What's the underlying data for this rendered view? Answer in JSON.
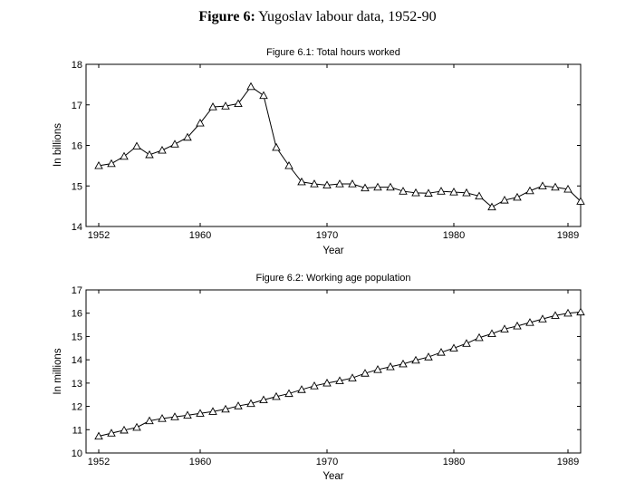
{
  "figure": {
    "label": "Figure 6:",
    "title": "Yugoslav labour data, 1952-90"
  },
  "chart_data": [
    {
      "type": "line",
      "title": "Figure 6.1: Total hours worked",
      "xlabel": "Year",
      "ylabel": "In billions",
      "xlim": [
        1951,
        1990
      ],
      "ylim": [
        14,
        18
      ],
      "xticks": [
        1952,
        1960,
        1970,
        1980,
        1989
      ],
      "yticks": [
        14,
        15,
        16,
        17,
        18
      ],
      "marker": "triangle",
      "x": [
        1952,
        1953,
        1954,
        1955,
        1956,
        1957,
        1958,
        1959,
        1960,
        1961,
        1962,
        1963,
        1964,
        1965,
        1966,
        1967,
        1968,
        1969,
        1970,
        1971,
        1972,
        1973,
        1974,
        1975,
        1976,
        1977,
        1978,
        1979,
        1980,
        1981,
        1982,
        1983,
        1984,
        1985,
        1986,
        1987,
        1988,
        1989,
        1990
      ],
      "values": [
        15.5,
        15.55,
        15.73,
        15.98,
        15.77,
        15.88,
        16.03,
        16.2,
        16.55,
        16.95,
        16.97,
        17.03,
        17.45,
        17.23,
        15.95,
        15.5,
        15.1,
        15.05,
        15.02,
        15.05,
        15.05,
        14.95,
        14.97,
        14.97,
        14.87,
        14.83,
        14.82,
        14.87,
        14.85,
        14.83,
        14.75,
        14.48,
        14.65,
        14.72,
        14.88,
        15.0,
        14.97,
        14.92,
        14.62
      ]
    },
    {
      "type": "line",
      "title": "Figure 6.2: Working age population",
      "xlabel": "Year",
      "ylabel": "In millions",
      "xlim": [
        1951,
        1990
      ],
      "ylim": [
        10,
        17
      ],
      "xticks": [
        1952,
        1960,
        1970,
        1980,
        1989
      ],
      "yticks": [
        10,
        11,
        12,
        13,
        14,
        15,
        16,
        17
      ],
      "marker": "triangle",
      "x": [
        1952,
        1953,
        1954,
        1955,
        1956,
        1957,
        1958,
        1959,
        1960,
        1961,
        1962,
        1963,
        1964,
        1965,
        1966,
        1967,
        1968,
        1969,
        1970,
        1971,
        1972,
        1973,
        1974,
        1975,
        1976,
        1977,
        1978,
        1979,
        1980,
        1981,
        1982,
        1983,
        1984,
        1985,
        1986,
        1987,
        1988,
        1989,
        1990
      ],
      "values": [
        10.72,
        10.85,
        10.98,
        11.1,
        11.38,
        11.48,
        11.55,
        11.62,
        11.7,
        11.78,
        11.88,
        12.02,
        12.12,
        12.28,
        12.42,
        12.55,
        12.72,
        12.88,
        13.0,
        13.1,
        13.22,
        13.42,
        13.58,
        13.7,
        13.82,
        13.98,
        14.12,
        14.32,
        14.5,
        14.7,
        14.95,
        15.12,
        15.32,
        15.45,
        15.6,
        15.75,
        15.9,
        16.0,
        16.05
      ]
    }
  ]
}
